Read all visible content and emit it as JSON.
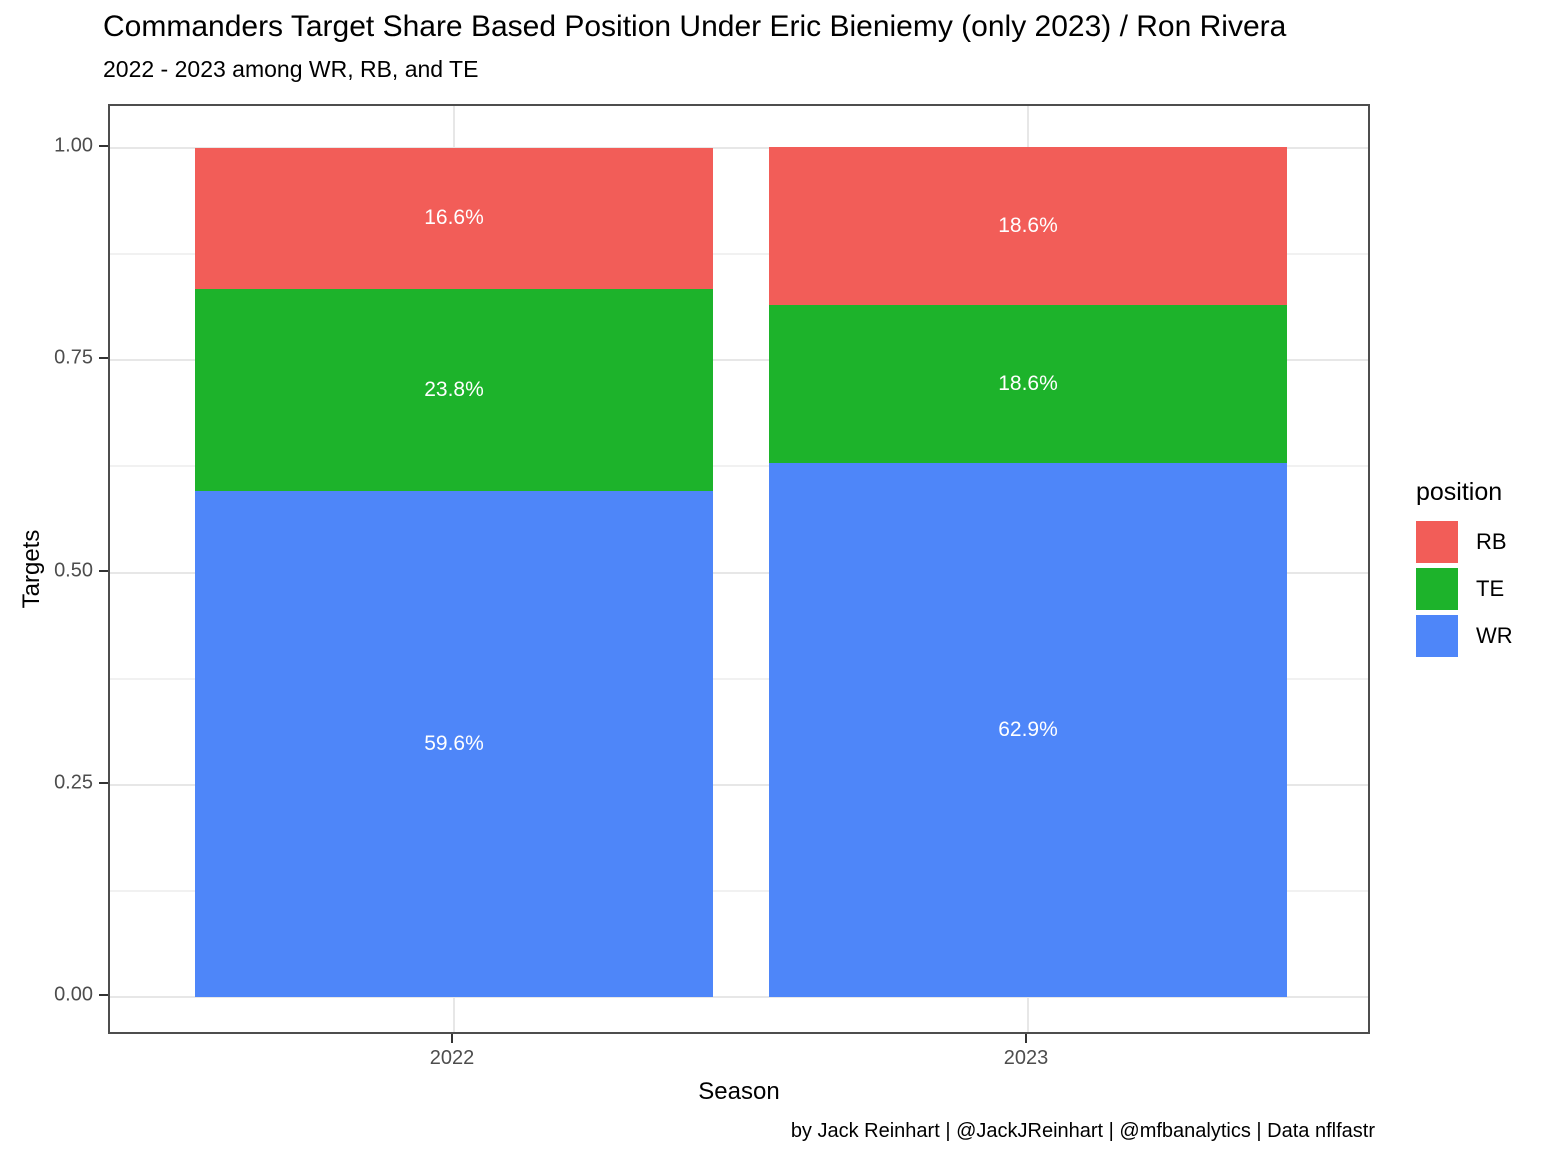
{
  "header": {
    "title": "Commanders Target Share Based Position Under Eric Bieniemy (only 2023) / Ron Rivera",
    "subtitle": "2022 - 2023 among WR, RB, and TE"
  },
  "chart_data": {
    "type": "bar",
    "stacked": true,
    "title": "Commanders Target Share Based Position Under Eric Bieniemy (only 2023) / Ron Rivera",
    "subtitle": "2022 - 2023 among WR, RB, and TE",
    "xlabel": "Season",
    "ylabel": "Targets",
    "caption": "by Jack Reinhart | @JackJReinhart | @mfbanalytics | Data nflfastr",
    "categories": [
      "2022",
      "2023"
    ],
    "series": [
      {
        "name": "WR",
        "color": "#4E86F9",
        "values": [
          0.596,
          0.629
        ],
        "labels": [
          "59.6%",
          "62.9%"
        ]
      },
      {
        "name": "TE",
        "color": "#1DB32B",
        "values": [
          0.238,
          0.186
        ],
        "labels": [
          "23.8%",
          "18.6%"
        ]
      },
      {
        "name": "RB",
        "color": "#F25D58",
        "values": [
          0.166,
          0.186
        ],
        "labels": [
          "16.6%",
          "18.6%"
        ]
      }
    ],
    "ylim": [
      0,
      1
    ],
    "y_ticks": [
      {
        "value": 0.0,
        "label": "0.00"
      },
      {
        "value": 0.25,
        "label": "0.25"
      },
      {
        "value": 0.5,
        "label": "0.50"
      },
      {
        "value": 0.75,
        "label": "0.75"
      },
      {
        "value": 1.0,
        "label": "1.00"
      }
    ],
    "y_minor_ticks": [
      0.125,
      0.375,
      0.625,
      0.875
    ],
    "grid": "horizontal major+minor light gray, vertical major at category centers",
    "legend": {
      "title": "position",
      "position": "right",
      "entries": [
        {
          "label": "RB",
          "color": "#F25D58"
        },
        {
          "label": "TE",
          "color": "#1DB32B"
        },
        {
          "label": "WR",
          "color": "#4E86F9"
        }
      ]
    }
  }
}
